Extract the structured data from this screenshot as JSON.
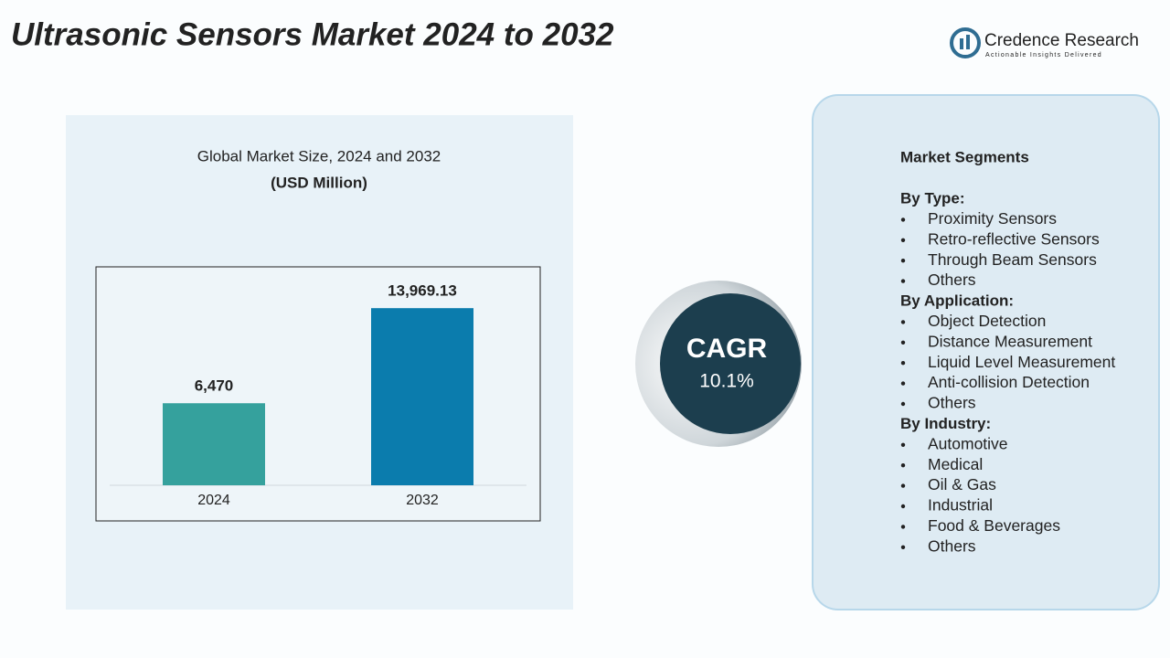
{
  "title": "Ultrasonic Sensors Market 2024 to 2032",
  "brand": {
    "name": "Credence Research",
    "tagline": "Actionable Insights Delivered"
  },
  "chart_data": {
    "type": "bar",
    "title": "Global Market Size, 2024 and 2032",
    "subtitle": "(USD Million)",
    "categories": [
      "2024",
      "2032"
    ],
    "values": [
      6470,
      13969.13
    ],
    "value_labels": [
      "6,470",
      "13,969.13"
    ],
    "colors": [
      "#35a19d",
      "#0b7cad"
    ],
    "ylim": [
      0,
      16000
    ]
  },
  "cagr": {
    "label": "CAGR",
    "value": "10.1%"
  },
  "segments": {
    "title": "Market Segments",
    "groups": [
      {
        "heading": "By Type:",
        "items": [
          "Proximity Sensors",
          "Retro-reflective Sensors",
          "Through Beam Sensors",
          "Others"
        ]
      },
      {
        "heading": "By Application:",
        "items": [
          "Object Detection",
          "Distance Measurement",
          "Liquid Level Measurement",
          "Anti-collision Detection",
          "Others"
        ]
      },
      {
        "heading": "By Industry:",
        "items": [
          "Automotive",
          "Medical",
          "Oil & Gas",
          "Industrial",
          "Food & Beverages",
          "Others"
        ]
      }
    ]
  }
}
